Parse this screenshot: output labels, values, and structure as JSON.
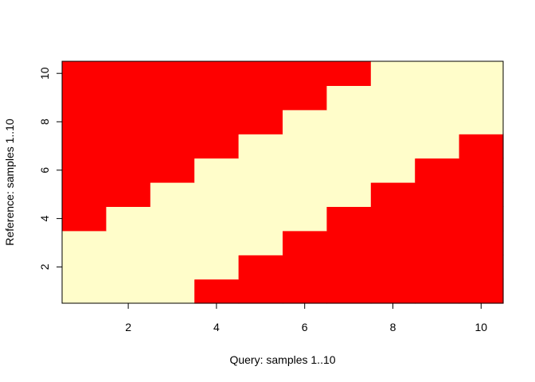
{
  "chart_data": {
    "type": "heatmap",
    "title": "",
    "xlabel": "Query: samples 1..10",
    "ylabel": "Reference: samples 1..10",
    "x": [
      1,
      2,
      3,
      4,
      5,
      6,
      7,
      8,
      9,
      10
    ],
    "y": [
      1,
      2,
      3,
      4,
      5,
      6,
      7,
      8,
      9,
      10
    ],
    "xlim": [
      0.5,
      10.5
    ],
    "ylim": [
      0.5,
      10.5
    ],
    "x_ticks": [
      "2",
      "4",
      "6",
      "8",
      "10"
    ],
    "y_ticks": [
      "2",
      "4",
      "6",
      "8",
      "10"
    ],
    "colors": {
      "high": "#fe0000",
      "low": "#fffdca"
    },
    "grid": false,
    "legend": "none",
    "values": [
      [
        0,
        0,
        0,
        1,
        1,
        1,
        1,
        1,
        1,
        1
      ],
      [
        0,
        0,
        0,
        0,
        1,
        1,
        1,
        1,
        1,
        1
      ],
      [
        0,
        0,
        0,
        0,
        0,
        1,
        1,
        1,
        1,
        1
      ],
      [
        1,
        0,
        0,
        0,
        0,
        0,
        1,
        1,
        1,
        1
      ],
      [
        1,
        1,
        0,
        0,
        0,
        0,
        0,
        1,
        1,
        1
      ],
      [
        1,
        1,
        1,
        0,
        0,
        0,
        0,
        0,
        1,
        1
      ],
      [
        1,
        1,
        1,
        1,
        0,
        0,
        0,
        0,
        0,
        1
      ],
      [
        1,
        1,
        1,
        1,
        1,
        0,
        0,
        0,
        0,
        0
      ],
      [
        1,
        1,
        1,
        1,
        1,
        1,
        0,
        0,
        0,
        0
      ],
      [
        1,
        1,
        1,
        1,
        1,
        1,
        1,
        0,
        0,
        0
      ]
    ]
  }
}
